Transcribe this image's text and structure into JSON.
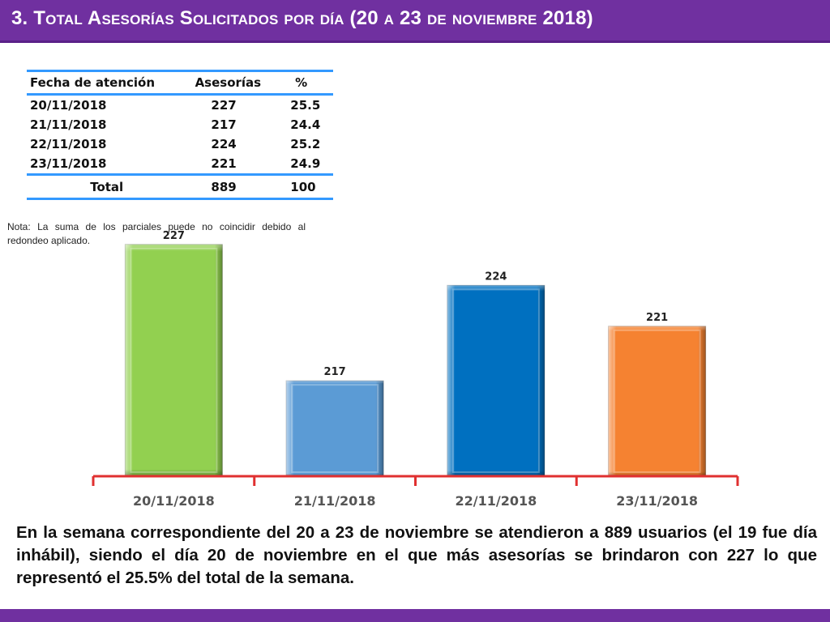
{
  "header": {
    "title": "3. Total Asesorías Solicitados por día  (20 a 23 de noviembre 2018)"
  },
  "table": {
    "headers": [
      "Fecha de atención",
      "Asesorías",
      "%"
    ],
    "rows": [
      {
        "fecha": "20/11/2018",
        "asesorias": "227",
        "pct": "25.5"
      },
      {
        "fecha": "21/11/2018",
        "asesorias": "217",
        "pct": "24.4"
      },
      {
        "fecha": "22/11/2018",
        "asesorias": "224",
        "pct": "25.2"
      },
      {
        "fecha": "23/11/2018",
        "asesorias": "221",
        "pct": "24.9"
      }
    ],
    "total": {
      "label": "Total",
      "asesorias": "889",
      "pct": "100"
    }
  },
  "note": "Nota: La suma de los parciales puede no coincidir debido al redondeo aplicado.",
  "chart_data": {
    "type": "bar",
    "categories": [
      "20/11/2018",
      "21/11/2018",
      "22/11/2018",
      "23/11/2018"
    ],
    "values": [
      227,
      217,
      224,
      221
    ],
    "colors": [
      "#92d050",
      "#5b9bd5",
      "#0070c0",
      "#f58231"
    ],
    "axis_color": "#e03030",
    "ylim": [
      210,
      228
    ],
    "grid": false,
    "title": "",
    "xlabel": "",
    "ylabel": ""
  },
  "summary": "En la semana correspondiente del 20 a 23 de noviembre se atendieron a 889 usuarios (el 19 fue día inhábil), siendo el día 20 de noviembre en el que más asesorías se brindaron con 227 lo que representó el 25.5% del total de la semana."
}
